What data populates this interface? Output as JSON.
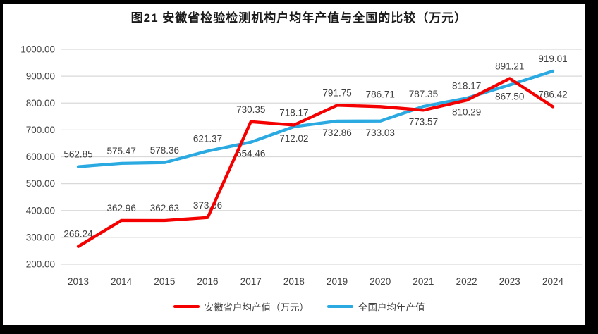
{
  "chart_data": {
    "type": "line",
    "title": "图21 安徽省检验检测机构户均年产值与全国的比较（万元）",
    "categories": [
      "2013",
      "2014",
      "2015",
      "2016",
      "2017",
      "2018",
      "2019",
      "2020",
      "2021",
      "2022",
      "2023",
      "2024"
    ],
    "series": [
      {
        "name": "安徽省户均产值（万元）",
        "color": "#F40000",
        "values": [
          266.24,
          362.96,
          362.63,
          373.66,
          730.35,
          718.17,
          791.75,
          786.71,
          773.57,
          810.29,
          891.21,
          786.42
        ],
        "labels": [
          "266.24",
          "362.96",
          "362.63",
          "373.66",
          "730.35",
          "718.17",
          "791.75",
          "786.71",
          "773.57",
          "810.29",
          "891.21",
          "786.42"
        ],
        "label_side": [
          "above",
          "above",
          "above",
          "above",
          "above",
          "above",
          "above",
          "above",
          "below",
          "below",
          "above",
          "above"
        ]
      },
      {
        "name": "全国户均年产值",
        "color": "#2BAAE2",
        "values": [
          562.85,
          575.47,
          578.36,
          621.37,
          654.46,
          712.02,
          732.86,
          733.03,
          787.35,
          818.17,
          867.5,
          919.01
        ],
        "labels": [
          "562.85",
          "575.47",
          "578.36",
          "621.37",
          "654.46",
          "712.02",
          "732.86",
          "733.03",
          "787.35",
          "818.17",
          "867.50",
          "919.01"
        ],
        "label_side": [
          "above",
          "above",
          "above",
          "above",
          "below",
          "below",
          "below",
          "below",
          "above",
          "above",
          "below",
          "above"
        ]
      }
    ],
    "ylim": [
      200,
      1000
    ],
    "ytick_step": 100,
    "ytick_labels": [
      "200.00",
      "300.00",
      "400.00",
      "500.00",
      "600.00",
      "700.00",
      "800.00",
      "900.00",
      "1000.00"
    ],
    "xlabel": "",
    "ylabel": "",
    "grid": "horizontal",
    "legend_position": "bottom"
  },
  "style": {
    "grid_color": "#D9D9D9",
    "axis_text_color": "#404040",
    "label_text_color": "#3F3F3F",
    "title_color": "#1A1A1A",
    "background": "#FFFFFF",
    "frame_color": "#000000"
  }
}
